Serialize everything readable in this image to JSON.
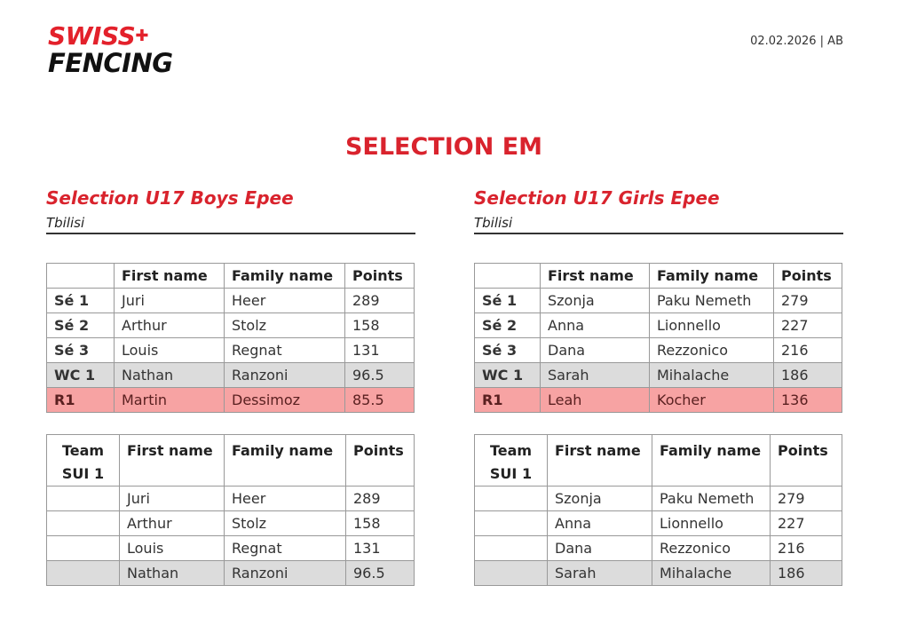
{
  "logo": {
    "line1": "SWISS",
    "line2": "FENCING"
  },
  "date": "02.02.2026 | AB",
  "title": "SELECTION EM",
  "colors": {
    "accent": "#d9232d",
    "reserve_row": "#f7a3a3",
    "wildcard_row": "#dcdcdc"
  },
  "sections": [
    {
      "heading": "Selection U17 Boys Epee",
      "location": "Tbilisi",
      "selection": {
        "headers": [
          "",
          "First name",
          "Family name",
          "Points"
        ],
        "rows": [
          [
            "Sé 1",
            "Juri",
            "Heer",
            "289"
          ],
          [
            "Sé 2",
            "Arthur",
            "Stolz",
            "158"
          ],
          [
            "Sé 3",
            "Louis",
            "Regnat",
            "131"
          ],
          [
            "WC 1",
            "Nathan",
            "Ranzoni",
            "96.5"
          ],
          [
            "R1",
            "Martin",
            "Dessimoz",
            "85.5"
          ]
        ]
      },
      "team": {
        "headers": [
          "Team SUI 1",
          "First name",
          "Family name",
          "Points"
        ],
        "rows": [
          [
            "",
            "Juri",
            "Heer",
            "289"
          ],
          [
            "",
            "Arthur",
            "Stolz",
            "158"
          ],
          [
            "",
            "Louis",
            "Regnat",
            "131"
          ],
          [
            "",
            "Nathan",
            "Ranzoni",
            "96.5"
          ]
        ]
      }
    },
    {
      "heading": "Selection U17 Girls Epee",
      "location": "Tbilisi",
      "selection": {
        "headers": [
          "",
          "First name",
          "Family name",
          "Points"
        ],
        "rows": [
          [
            "Sé 1",
            "Szonja",
            "Paku Nemeth",
            "279"
          ],
          [
            "Sé 2",
            "Anna",
            "Lionnello",
            "227"
          ],
          [
            "Sé 3",
            "Dana",
            "Rezzonico",
            "216"
          ],
          [
            "WC 1",
            "Sarah",
            "Mihalache",
            "186"
          ],
          [
            "R1",
            "Leah",
            "Kocher",
            "136"
          ]
        ]
      },
      "team": {
        "headers": [
          "Team SUI 1",
          "First name",
          "Family name",
          "Points"
        ],
        "rows": [
          [
            "",
            "Szonja",
            "Paku Nemeth",
            "279"
          ],
          [
            "",
            "Anna",
            "Lionnello",
            "227"
          ],
          [
            "",
            "Dana",
            "Rezzonico",
            "216"
          ],
          [
            "",
            "Sarah",
            "Mihalache",
            "186"
          ]
        ]
      }
    }
  ]
}
